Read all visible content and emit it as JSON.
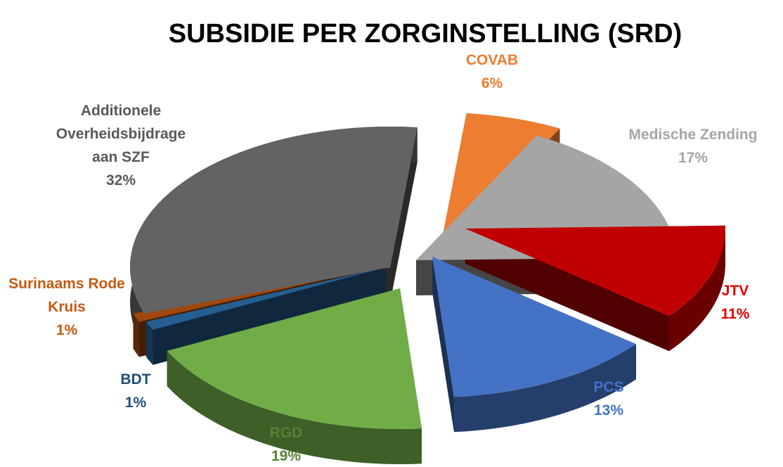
{
  "chart_data": {
    "type": "pie",
    "variant": "3d-exploded",
    "title": "SUBSIDIE PER ZORGINSTELLING (SRD)",
    "slices": [
      {
        "label": "COVAB",
        "value": 6,
        "value_label": "6%",
        "color": "#ED7D31"
      },
      {
        "label": "Medische Zending",
        "value": 17,
        "value_label": "17%",
        "color": "#A5A5A5"
      },
      {
        "label": "JTV",
        "value": 11,
        "value_label": "11%",
        "color": "#C00000"
      },
      {
        "label": "PCS",
        "value": 13,
        "value_label": "13%",
        "color": "#4472C4"
      },
      {
        "label": "RGD",
        "value": 19,
        "value_label": "19%",
        "color": "#70AD47"
      },
      {
        "label": "BDT",
        "value": 1,
        "value_label": "1%",
        "color": "#255E91"
      },
      {
        "label": "Surinaams Rode Kruis",
        "value": 1,
        "value_label": "1%",
        "color": "#9E480E"
      },
      {
        "label": "Additionele Overheidsbijdrage aan SZF",
        "value": 32,
        "value_label": "32%",
        "color": "#636363"
      }
    ],
    "label_colors": {
      "COVAB": "#ED7D31",
      "Medische Zending": "#A5A5A5",
      "JTV": "#E00000",
      "PCS": "#4472C4",
      "RGD": "#548235",
      "BDT": "#1F4E79",
      "Surinaams Rode Kruis": "#C55A11",
      "Additionele Overheidsbijdrage aan SZF": "#595959"
    },
    "legend": "none"
  }
}
